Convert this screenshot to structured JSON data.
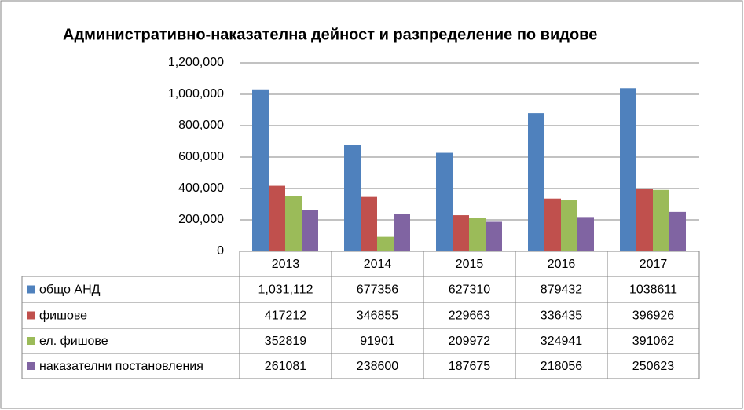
{
  "chart_data": {
    "type": "bar",
    "title": "Административно-наказателна дейност и разпределение по видове",
    "categories": [
      "2013",
      "2014",
      "2015",
      "2016",
      "2017"
    ],
    "series": [
      {
        "name": "общо АНД",
        "color": "#4f81bd",
        "values": [
          1031112,
          677356,
          627310,
          879432,
          1038611
        ],
        "value_labels": [
          "1,031,112",
          "677356",
          "627310",
          "879432",
          "1038611"
        ]
      },
      {
        "name": "фишове",
        "color": "#c0504d",
        "values": [
          417212,
          346855,
          229663,
          336435,
          396926
        ]
      },
      {
        "name": "ел. фишове",
        "color": "#9bbb59",
        "values": [
          352819,
          91901,
          209972,
          324941,
          391062
        ]
      },
      {
        "name": "наказателни постановления",
        "color": "#8064a2",
        "values": [
          261081,
          238600,
          187675,
          218056,
          250623
        ]
      }
    ],
    "ylim": [
      0,
      1200000
    ],
    "yticks": [
      0,
      {
        "value": 200000,
        "label": "200,000"
      },
      {
        "value": 400000,
        "label": "400,000"
      },
      {
        "value": 600000,
        "label": "600,000"
      },
      {
        "value": 800000,
        "label": "800,000"
      },
      {
        "value": 1000000,
        "label": "1,000,000"
      },
      {
        "value": 1200000,
        "label": "1,200,000"
      }
    ],
    "grid": true
  }
}
